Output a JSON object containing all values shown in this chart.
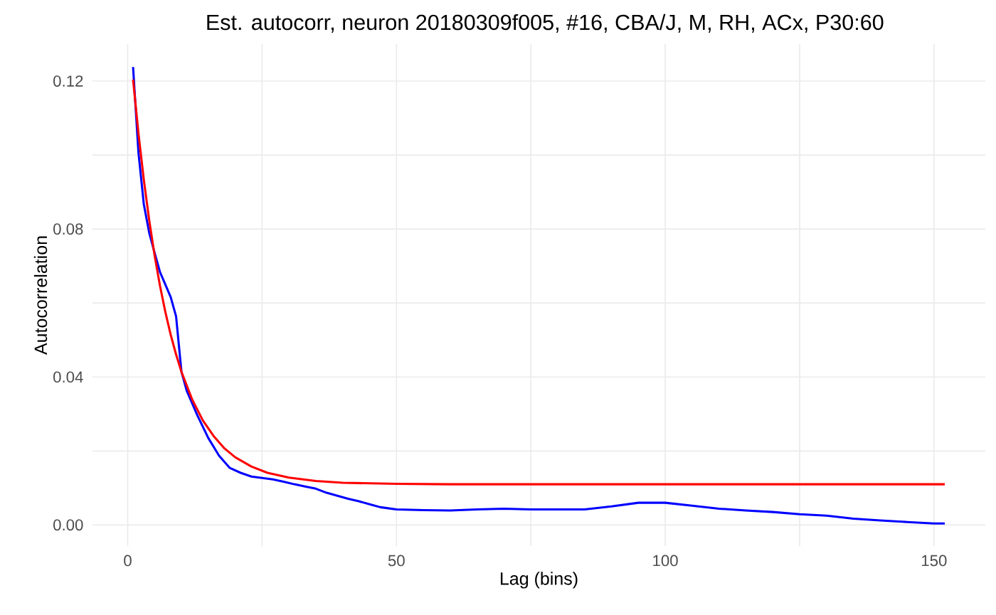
{
  "chart_data": {
    "type": "line",
    "title": "Est. autocorr, neuron 20180309f005, #16, CBA/J, M, RH, ACx, P30:60",
    "xlabel": "Lag (bins)",
    "ylabel": "Autocorrelation",
    "xlim": [
      -6.55,
      159.55
    ],
    "ylim": [
      -0.0057,
      0.13
    ],
    "xticks": [
      0,
      {
        "value": 25,
        "label": null
      },
      50,
      {
        "value": 75,
        "label": null
      },
      100,
      {
        "value": 125,
        "label": null
      },
      150
    ],
    "yticks": [
      {
        "value": 0,
        "label": "0.00"
      },
      {
        "value": 0.02,
        "label": null
      },
      {
        "value": 0.04,
        "label": "0.04"
      },
      {
        "value": 0.06,
        "label": null
      },
      {
        "value": 0.08,
        "label": "0.08"
      },
      {
        "value": 0.1,
        "label": null
      },
      {
        "value": 0.12,
        "label": "0.12"
      }
    ],
    "grid": true,
    "marker": "none",
    "line_style": "solid",
    "series": [
      {
        "color": "#0000ff",
        "x": [
          1,
          2,
          3,
          4,
          5,
          6,
          7,
          8,
          9,
          10,
          11,
          13,
          15,
          17,
          19,
          21,
          23,
          25,
          27,
          29,
          31,
          33,
          35,
          37,
          39,
          41,
          43,
          45,
          47,
          50,
          55,
          60,
          65,
          70,
          75,
          80,
          85,
          90,
          95,
          100,
          105,
          110,
          115,
          120,
          125,
          130,
          135,
          140,
          145,
          150,
          152
        ],
        "values": [
          0.1238,
          0.1007,
          0.0867,
          0.079,
          0.0736,
          0.0684,
          0.065,
          0.0616,
          0.0564,
          0.0414,
          0.0362,
          0.0295,
          0.0235,
          0.0187,
          0.0154,
          0.0141,
          0.0131,
          0.0127,
          0.0123,
          0.0117,
          0.011,
          0.0104,
          0.0098,
          0.0087,
          0.0079,
          0.0071,
          0.0064,
          0.0056,
          0.0048,
          0.0042,
          0.004,
          0.0039,
          0.0042,
          0.0044,
          0.0042,
          0.0042,
          0.0042,
          0.005,
          0.006,
          0.006,
          0.0052,
          0.0044,
          0.0039,
          0.0035,
          0.0029,
          0.0025,
          0.0017,
          0.0012,
          0.0008,
          0.0004,
          0.0004
        ]
      },
      {
        "color": "#ff0000",
        "x": [
          1,
          2,
          3,
          4,
          5,
          6,
          7,
          8,
          9,
          10,
          12,
          14,
          16,
          18,
          20,
          23,
          26,
          30,
          35,
          40,
          50,
          60,
          100,
          152
        ],
        "values": [
          0.1204,
          0.1059,
          0.0933,
          0.0824,
          0.0729,
          0.0647,
          0.0576,
          0.0514,
          0.0461,
          0.0414,
          0.0339,
          0.0282,
          0.024,
          0.0207,
          0.0183,
          0.0158,
          0.0141,
          0.0128,
          0.0119,
          0.0114,
          0.0111,
          0.011,
          0.011,
          0.011
        ]
      }
    ]
  }
}
